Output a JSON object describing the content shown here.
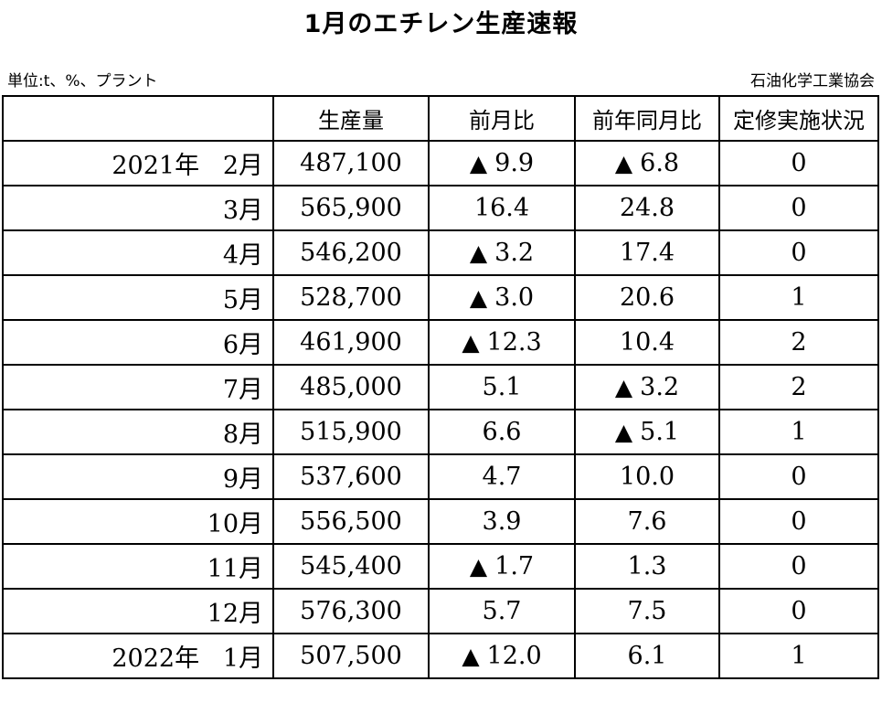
{
  "title": "1月のエチレン生産速報",
  "unit_note": "単位:t、%、プラント",
  "source": "石油化学工業協会",
  "table": {
    "headers": [
      "",
      "生産量",
      "前月比",
      "前年同月比",
      "定修実施状況"
    ],
    "rows": [
      {
        "label": "2021年   2月",
        "production": "487,100",
        "mom": "9.9",
        "mom_neg": true,
        "yoy": "6.8",
        "yoy_neg": true,
        "maintenance": "0"
      },
      {
        "label": "3月",
        "production": "565,900",
        "mom": "16.4",
        "mom_neg": false,
        "yoy": "24.8",
        "yoy_neg": false,
        "maintenance": "0"
      },
      {
        "label": "4月",
        "production": "546,200",
        "mom": "3.2",
        "mom_neg": true,
        "yoy": "17.4",
        "yoy_neg": false,
        "maintenance": "0"
      },
      {
        "label": "5月",
        "production": "528,700",
        "mom": "3.0",
        "mom_neg": true,
        "yoy": "20.6",
        "yoy_neg": false,
        "maintenance": "1"
      },
      {
        "label": "6月",
        "production": "461,900",
        "mom": "12.3",
        "mom_neg": true,
        "yoy": "10.4",
        "yoy_neg": false,
        "maintenance": "2"
      },
      {
        "label": "7月",
        "production": "485,000",
        "mom": "5.1",
        "mom_neg": false,
        "yoy": "3.2",
        "yoy_neg": true,
        "maintenance": "2"
      },
      {
        "label": "8月",
        "production": "515,900",
        "mom": "6.6",
        "mom_neg": false,
        "yoy": "5.1",
        "yoy_neg": true,
        "maintenance": "1"
      },
      {
        "label": "9月",
        "production": "537,600",
        "mom": "4.7",
        "mom_neg": false,
        "yoy": "10.0",
        "yoy_neg": false,
        "maintenance": "0"
      },
      {
        "label": "10月",
        "production": "556,500",
        "mom": "3.9",
        "mom_neg": false,
        "yoy": "7.6",
        "yoy_neg": false,
        "maintenance": "0"
      },
      {
        "label": "11月",
        "production": "545,400",
        "mom": "1.7",
        "mom_neg": true,
        "yoy": "1.3",
        "yoy_neg": false,
        "maintenance": "0"
      },
      {
        "label": "12月",
        "production": "576,300",
        "mom": "5.7",
        "mom_neg": false,
        "yoy": "7.5",
        "yoy_neg": false,
        "maintenance": "0"
      },
      {
        "label": "2022年   1月",
        "production": "507,500",
        "mom": "12.0",
        "mom_neg": true,
        "yoy": "6.1",
        "yoy_neg": false,
        "maintenance": "1"
      }
    ]
  },
  "negative_marker": "▲"
}
